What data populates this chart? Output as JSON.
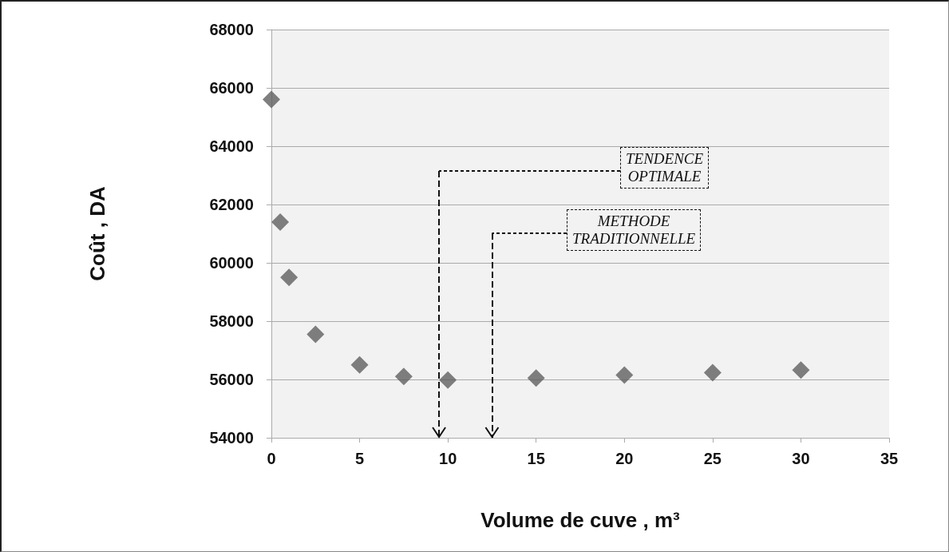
{
  "chart_data": {
    "type": "scatter",
    "xlabel": "Volume de cuve , m³",
    "ylabel": "Coût , DA",
    "x": [
      0,
      0.5,
      1,
      2.5,
      5,
      7.5,
      10,
      15,
      20,
      25,
      30
    ],
    "values": [
      65600,
      61400,
      59500,
      57550,
      56500,
      56100,
      55980,
      56050,
      56150,
      56230,
      56320
    ],
    "color": "#5f5f5f",
    "marker": "diamond",
    "xlim": [
      0,
      35
    ],
    "xticks": [
      0,
      5,
      10,
      15,
      20,
      25,
      30,
      35
    ],
    "ylim": [
      54000,
      68000
    ],
    "yticks": [
      54000,
      56000,
      58000,
      60000,
      62000,
      64000,
      66000,
      68000
    ],
    "grid": "y",
    "ref_lines": [
      {
        "axis": "x",
        "value": 9.5,
        "label": "TENDENCE\nOPTIMALE",
        "line_style": "dashed",
        "color": "#111111"
      },
      {
        "axis": "x",
        "value": 12.5,
        "label": "METHODE\nTRADITIONNELLE",
        "line_style": "dashed",
        "color": "#111111"
      }
    ]
  }
}
